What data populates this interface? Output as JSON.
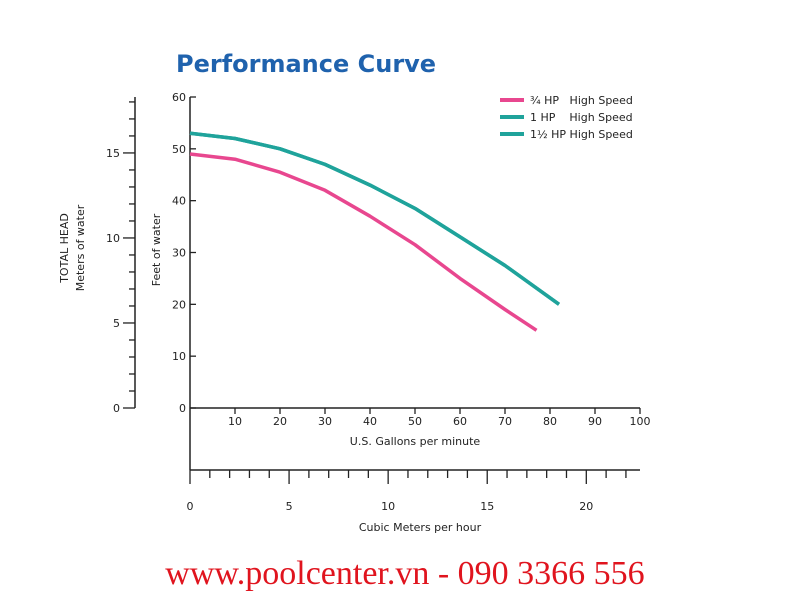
{
  "chart_data": {
    "type": "line",
    "title": "Performance Curve",
    "xlabel": "U.S. Gallons per minute",
    "ylabel": "Feet of water",
    "y2label_title": "TOTAL HEAD",
    "y2label": "Meters of water",
    "x2label": "Cubic Meters per hour",
    "footer": "www.poolcenter.vn - 090 3366 556",
    "xlim": [
      0,
      100
    ],
    "xticks": [
      10,
      20,
      30,
      40,
      50,
      60,
      70,
      80,
      90,
      100
    ],
    "ylim": [
      0,
      60
    ],
    "yticks": [
      0,
      10,
      20,
      30,
      40,
      50,
      60
    ],
    "y2lim": [
      0,
      18.29
    ],
    "y2ticks": [
      0,
      5,
      10,
      15
    ],
    "y2minorticks": [
      1,
      2,
      3,
      4,
      6,
      7,
      8,
      9,
      11,
      12,
      13,
      14,
      16,
      17,
      18
    ],
    "x2lim": [
      0,
      22.71
    ],
    "x2ticks": [
      0,
      5,
      10,
      15,
      20
    ],
    "x2minorticks": [
      1,
      2,
      3,
      4,
      6,
      7,
      8,
      9,
      11,
      12,
      13,
      14,
      16,
      17,
      18,
      19,
      21,
      22
    ],
    "legend": "upper right",
    "series": [
      {
        "name": "¾ HP   High Speed",
        "color": "#e8478f",
        "x": [
          0,
          10,
          20,
          30,
          40,
          50,
          60,
          70,
          77
        ],
        "values": [
          49,
          48,
          45.5,
          42,
          37,
          31.5,
          25,
          19,
          15
        ]
      },
      {
        "name": "1 HP    High Speed",
        "color": "#1fa39b",
        "x": [
          0,
          10,
          20,
          30,
          40,
          50,
          60,
          70,
          82
        ],
        "values": [
          53,
          52,
          50,
          47,
          43,
          38.5,
          33,
          27.5,
          20
        ]
      },
      {
        "name": "1½ HP High Speed",
        "color": "#1fa39b",
        "x": [
          0,
          10,
          20,
          30,
          40,
          50,
          60,
          70,
          82
        ],
        "values": [
          53,
          52,
          50,
          47,
          43,
          38.5,
          33,
          27.5,
          20
        ]
      }
    ]
  }
}
